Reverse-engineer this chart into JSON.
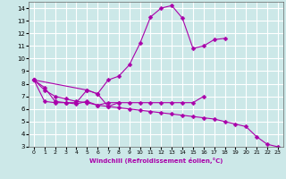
{
  "xlabel": "Windchill (Refroidissement éolien,°C)",
  "bg_color": "#cce8e8",
  "grid_color": "#ffffff",
  "line_color": "#aa00aa",
  "xlim": [
    -0.5,
    23.5
  ],
  "ylim": [
    3,
    14.5
  ],
  "xticks": [
    0,
    1,
    2,
    3,
    4,
    5,
    6,
    7,
    8,
    9,
    10,
    11,
    12,
    13,
    14,
    15,
    16,
    17,
    18,
    19,
    20,
    21,
    22,
    23
  ],
  "yticks": [
    3,
    4,
    5,
    6,
    7,
    8,
    9,
    10,
    11,
    12,
    13,
    14
  ],
  "series": [
    {
      "x": [
        0,
        1,
        2,
        3,
        4,
        5,
        6,
        7,
        8,
        9,
        10,
        11,
        12,
        13,
        14,
        15,
        16,
        17,
        18
      ],
      "y": [
        8.3,
        7.7,
        6.6,
        6.5,
        6.5,
        7.5,
        7.2,
        8.3,
        8.6,
        9.5,
        11.2,
        13.3,
        14.0,
        14.2,
        13.2,
        10.8,
        11.0,
        11.5,
        11.6
      ],
      "marker": "D",
      "ms": 2.5
    },
    {
      "x": [
        0,
        5,
        6,
        7,
        8
      ],
      "y": [
        8.3,
        7.5,
        7.2,
        6.2,
        6.5
      ],
      "marker": "D",
      "ms": 2.5
    },
    {
      "x": [
        0,
        1,
        2,
        3,
        4,
        5,
        6,
        7,
        8,
        9,
        10,
        11,
        12,
        13,
        14,
        15,
        16
      ],
      "y": [
        8.3,
        6.6,
        6.5,
        6.5,
        6.4,
        6.6,
        6.3,
        6.5,
        6.5,
        6.5,
        6.5,
        6.5,
        6.5,
        6.5,
        6.5,
        6.5,
        7.0
      ],
      "marker": "D",
      "ms": 2.5
    },
    {
      "x": [
        0,
        1,
        2,
        3,
        4,
        5,
        6,
        7,
        8,
        9,
        10,
        11,
        12,
        13,
        14,
        15,
        16,
        17,
        18,
        19,
        20,
        21,
        22,
        23
      ],
      "y": [
        8.3,
        7.5,
        7.0,
        6.8,
        6.6,
        6.5,
        6.3,
        6.2,
        6.1,
        6.0,
        5.9,
        5.8,
        5.7,
        5.6,
        5.5,
        5.4,
        5.3,
        5.2,
        5.0,
        4.8,
        4.6,
        3.8,
        3.2,
        3.0
      ],
      "marker": "D",
      "ms": 2.5
    }
  ]
}
